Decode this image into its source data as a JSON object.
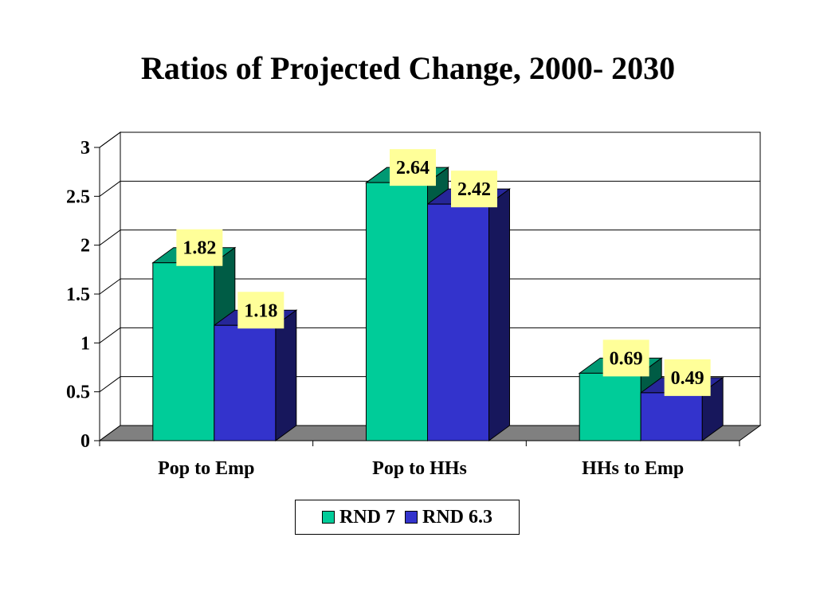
{
  "chart_data": {
    "type": "bar",
    "title": "Ratios of Projected Change, 2000- 2030",
    "categories": [
      "Pop to Emp",
      "Pop to HHs",
      "HHs to Emp"
    ],
    "series": [
      {
        "name": "RND 7",
        "values": [
          1.82,
          2.64,
          0.69
        ],
        "color": "#00CC99"
      },
      {
        "name": "RND 6.3",
        "values": [
          1.18,
          2.42,
          0.49
        ],
        "color": "#3333CC"
      }
    ],
    "ylim": [
      0,
      3
    ],
    "yticks": [
      "0",
      "0.5",
      "1",
      "1.5",
      "2",
      "2.5",
      "3"
    ],
    "grid": true,
    "style": "3d",
    "legend_position": "bottom",
    "data_label_background": "#FFFF99"
  }
}
